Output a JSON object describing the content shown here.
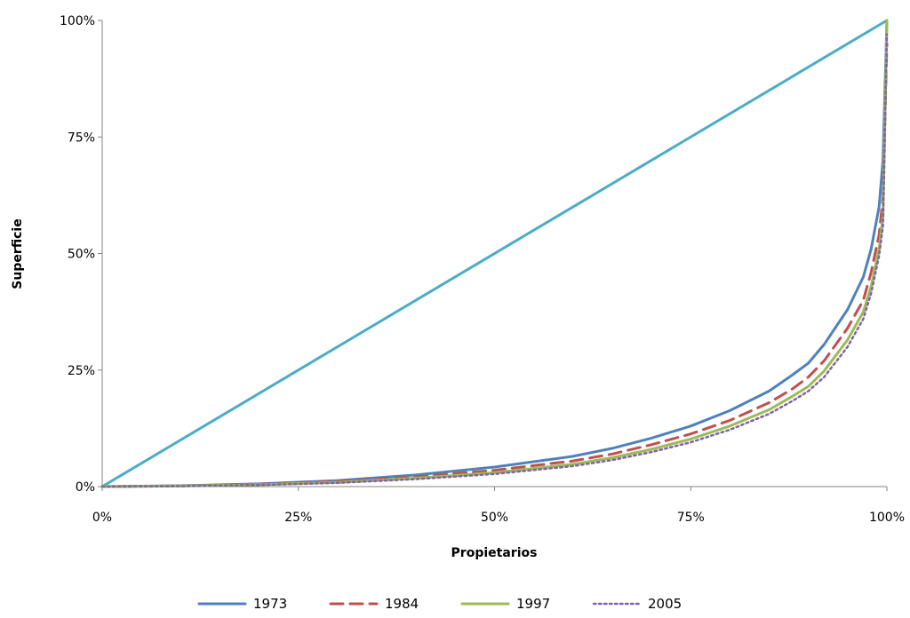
{
  "chart_data": {
    "type": "line",
    "title": "",
    "xlabel": "Propietarios",
    "ylabel": "Superficie",
    "xlim": [
      0,
      100
    ],
    "ylim": [
      0,
      100
    ],
    "grid": false,
    "legend_position": "bottom",
    "x_ticks": [
      "0%",
      "25%",
      "50%",
      "75%",
      "100%"
    ],
    "y_ticks": [
      "0%",
      "25%",
      "50%",
      "75%",
      "100%"
    ],
    "series": [
      {
        "name": "",
        "color": "#4bacc6",
        "style": "solid",
        "x": [
          0,
          100
        ],
        "y": [
          0,
          100
        ]
      },
      {
        "name": "1973",
        "color": "#4f81bd",
        "style": "solid",
        "x": [
          0,
          10,
          20,
          30,
          40,
          50,
          60,
          65,
          70,
          75,
          80,
          85,
          88,
          90,
          92,
          95,
          97,
          98,
          99,
          99.5,
          100
        ],
        "y": [
          0,
          0.2,
          0.6,
          1.3,
          2.5,
          4.2,
          6.5,
          8.2,
          10.4,
          13,
          16.3,
          20.5,
          24,
          26.5,
          30.5,
          38,
          45,
          51,
          60,
          70,
          100
        ]
      },
      {
        "name": "1984",
        "color": "#c0504d",
        "style": "dashed",
        "x": [
          0,
          10,
          20,
          30,
          40,
          50,
          60,
          65,
          70,
          75,
          80,
          85,
          88,
          90,
          92,
          95,
          97,
          98,
          99,
          99.5,
          100
        ],
        "y": [
          0,
          0.15,
          0.5,
          1.1,
          2.1,
          3.5,
          5.5,
          7,
          9,
          11.3,
          14.2,
          18,
          21,
          23.5,
          27,
          34,
          40,
          46,
          54,
          62,
          95
        ]
      },
      {
        "name": "1997",
        "color": "#9bbb59",
        "style": "solid",
        "x": [
          0,
          10,
          20,
          30,
          40,
          50,
          60,
          65,
          70,
          75,
          80,
          85,
          88,
          90,
          92,
          95,
          97,
          98,
          99,
          99.5,
          100
        ],
        "y": [
          0,
          0.12,
          0.4,
          0.9,
          1.8,
          3,
          4.8,
          6.2,
          8,
          10.2,
          13,
          16.5,
          19.4,
          21.5,
          24.8,
          31.5,
          37.5,
          43,
          51,
          58,
          100
        ]
      },
      {
        "name": "2005",
        "color": "#8064a2",
        "style": "dotted",
        "x": [
          0,
          10,
          20,
          30,
          40,
          50,
          60,
          65,
          70,
          75,
          80,
          85,
          88,
          90,
          92,
          95,
          97,
          98,
          99,
          99.5,
          100
        ],
        "y": [
          0,
          0.1,
          0.35,
          0.8,
          1.6,
          2.7,
          4.4,
          5.7,
          7.4,
          9.5,
          12.2,
          15.6,
          18.4,
          20.5,
          23.5,
          30,
          36,
          41.5,
          49.5,
          56,
          97
        ]
      }
    ]
  }
}
